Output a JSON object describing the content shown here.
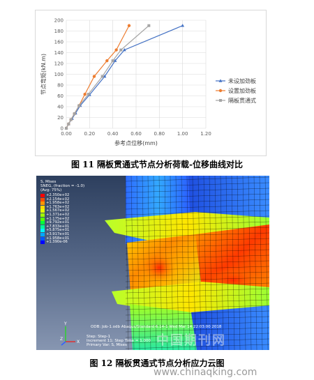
{
  "chart_data": {
    "type": "line",
    "title": "",
    "xlabel": "参考点位移(mm)",
    "ylabel": "节点弯矩(kN.m)",
    "xlim": [
      0.0,
      1.2
    ],
    "ylim": [
      0,
      200
    ],
    "x_ticks": [
      "0.00",
      "0.20",
      "0.40",
      "0.60",
      "0.80",
      "1.00",
      "1.20"
    ],
    "y_ticks": [
      "0",
      "20",
      "40",
      "60",
      "80",
      "100",
      "120",
      "140",
      "160",
      "180",
      "200"
    ],
    "grid": true,
    "legend_position": "right",
    "series": [
      {
        "name": "未设加劲板",
        "color": "#4472c4",
        "marker": "triangle",
        "x": [
          0,
          0.02,
          0.05,
          0.08,
          0.12,
          0.2,
          0.33,
          0.42,
          0.5,
          1.0
        ],
        "y": [
          0,
          8,
          18,
          28,
          42,
          62,
          96,
          125,
          145,
          190
        ]
      },
      {
        "name": "设置加劲板",
        "color": "#ed7d31",
        "marker": "circle",
        "x": [
          0,
          0.02,
          0.04,
          0.07,
          0.11,
          0.16,
          0.24,
          0.35,
          0.43,
          0.54
        ],
        "y": [
          0,
          8,
          16,
          27,
          42,
          63,
          96,
          125,
          145,
          190
        ]
      },
      {
        "name": "隔板贯通式",
        "color": "#a5a5a5",
        "marker": "square",
        "x": [
          0,
          0.02,
          0.04,
          0.07,
          0.11,
          0.19,
          0.31,
          0.4,
          0.47,
          0.71
        ],
        "y": [
          0,
          8,
          16,
          27,
          42,
          63,
          96,
          125,
          145,
          190
        ]
      }
    ]
  },
  "captions": {
    "fig11": "图 11  隔板贯通式节点分析荷载-位移曲线对比",
    "fig12": "图 12  隔板贯通式节点分析应力云图"
  },
  "fea": {
    "legend_title": [
      "S, Mises",
      "SNEG, (fraction = -1.0)",
      "(Avg: 75%)"
    ],
    "legend_values": [
      "+2.350e+02",
      "+2.154e+02",
      "+1.958e+02",
      "+1.763e+02",
      "+1.567e+02",
      "+1.371e+02",
      "+1.175e+02",
      "+9.792e+01",
      "+7.833e+01",
      "+5.875e+01",
      "+3.917e+01",
      "+1.958e+01",
      "+1.390e-06"
    ],
    "legend_colors": [
      "#ff0000",
      "#ff4a00",
      "#ff9400",
      "#ffd800",
      "#e3ff00",
      "#a0ff00",
      "#59ff00",
      "#00ff3d",
      "#00ff98",
      "#00f5ff",
      "#00a7ff",
      "#0058ff",
      "#0000ff"
    ],
    "odb_line": "ODB: Job-1.odb    Abaqus/Standard 6.14-1",
    "odb_date": "Wed Mar 14 22:03:00 2018",
    "step_line": "Step: Step-1",
    "increment_line": "Increment    11: Step Time =   1.000",
    "primary_var_line": "Primary Var: S, Mises",
    "triad": {
      "y": "Y",
      "z": "Z",
      "x": "X"
    }
  },
  "watermarks": {
    "overlay": "中国期刊网",
    "footer": "www.chinaqking.com"
  }
}
